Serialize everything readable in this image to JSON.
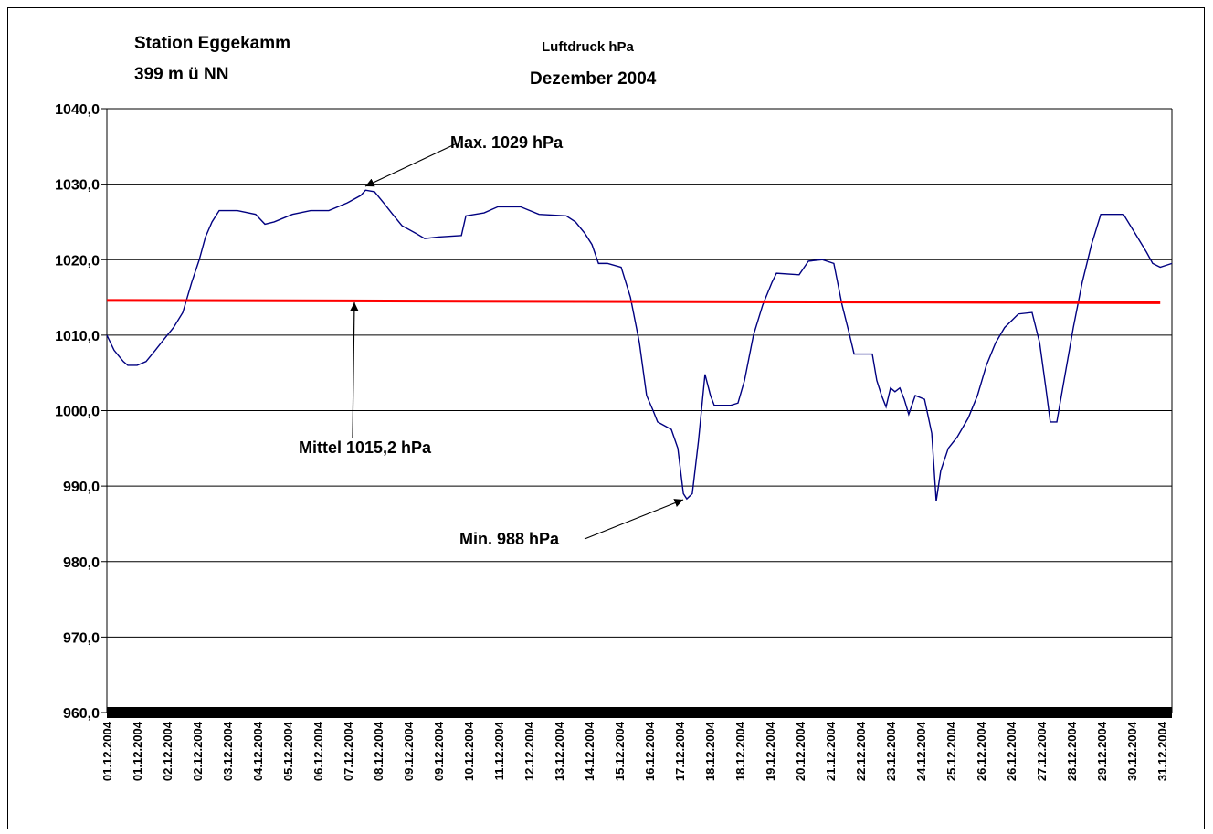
{
  "chart_data": {
    "type": "line",
    "title": "Luftdruck hPa",
    "subtitle": "Dezember 2004",
    "station": "Station Eggekamm",
    "elevation": "399 m ü NN",
    "categories": [
      "01.12.2004",
      "01.12.2004",
      "02.12.2004",
      "02.12.2004",
      "03.12.2004",
      "04.12.2004",
      "05.12.2004",
      "06.12.2004",
      "07.12.2004",
      "08.12.2004",
      "09.12.2004",
      "09.12.2004",
      "10.12.2004",
      "11.12.2004",
      "12.12.2004",
      "13.12.2004",
      "14.12.2004",
      "15.12.2004",
      "16.12.2004",
      "17.12.2004",
      "18.12.2004",
      "18.12.2004",
      "19.12.2004",
      "20.12.2004",
      "21.12.2004",
      "22.12.2004",
      "23.12.2004",
      "24.12.2004",
      "25.12.2004",
      "26.12.2004",
      "26.12.2004",
      "27.12.2004",
      "28.12.2004",
      "29.12.2004",
      "30.12.2004",
      "31.12.2004"
    ],
    "xlim": [
      1,
      32
    ],
    "ylim": [
      960,
      1040
    ],
    "yticks": [
      {
        "value": 960,
        "label": "960,0"
      },
      {
        "value": 970,
        "label": "970,0"
      },
      {
        "value": 980,
        "label": "980,0"
      },
      {
        "value": 990,
        "label": "990,0"
      },
      {
        "value": 1000,
        "label": "1000,0"
      },
      {
        "value": 1010,
        "label": "1010,0"
      },
      {
        "value": 1020,
        "label": "1020,0"
      },
      {
        "value": 1030,
        "label": "1030,0"
      },
      {
        "value": 1040,
        "label": "1040,0"
      }
    ],
    "grid": true,
    "series": [
      {
        "color": "#000080",
        "x": [
          1.0,
          1.21,
          1.48,
          1.61,
          1.88,
          2.14,
          2.41,
          2.67,
          2.94,
          3.21,
          3.34,
          3.47,
          3.69,
          3.87,
          4.06,
          4.27,
          4.8,
          5.33,
          5.6,
          5.87,
          6.4,
          6.93,
          7.46,
          7.99,
          8.39,
          8.53,
          8.79,
          9.06,
          9.32,
          9.59,
          9.99,
          10.25,
          10.65,
          11.32,
          11.45,
          11.98,
          12.38,
          13.04,
          13.58,
          14.37,
          14.64,
          14.91,
          15.12,
          15.31,
          15.57,
          15.97,
          16.24,
          16.5,
          16.71,
          16.9,
          17.03,
          17.43,
          17.62,
          17.78,
          17.88,
          18.04,
          18.22,
          18.41,
          18.57,
          18.68,
          19.16,
          19.37,
          19.56,
          19.82,
          20.09,
          20.36,
          20.49,
          21.15,
          21.42,
          21.82,
          22.16,
          22.4,
          22.62,
          22.75,
          23.28,
          23.41,
          23.55,
          23.68,
          23.81,
          23.94,
          24.08,
          24.21,
          24.34,
          24.53,
          24.8,
          25.01,
          25.14,
          25.27,
          25.49,
          25.75,
          26.07,
          26.34,
          26.6,
          26.87,
          27.13,
          27.53,
          27.93,
          28.15,
          28.33,
          28.46,
          28.65,
          28.86,
          29.13,
          29.39,
          29.66,
          29.93,
          30.59,
          30.86,
          31.26,
          31.44,
          31.66,
          32.0
        ],
        "values": [
          1010,
          1008,
          1006.5,
          1006,
          1006,
          1006.5,
          1008,
          1009.5,
          1011,
          1013,
          1015,
          1017,
          1020,
          1023,
          1025,
          1026.5,
          1026.5,
          1026,
          1024.7,
          1025,
          1026,
          1026.5,
          1026.5,
          1027.5,
          1028.5,
          1029.2,
          1029,
          1027.5,
          1026,
          1024.5,
          1023.5,
          1022.8,
          1023,
          1023.2,
          1025.8,
          1026.2,
          1027,
          1027,
          1026,
          1025.8,
          1025,
          1023.5,
          1022,
          1019.5,
          1019.5,
          1019,
          1015,
          1009,
          1002,
          1000,
          998.5,
          997.5,
          995,
          989,
          988.3,
          989,
          996,
          1004.8,
          1002,
          1000.7,
          1000.7,
          1001,
          1004,
          1010,
          1014,
          1017,
          1018.2,
          1018,
          1019.8,
          1020,
          1019.5,
          1014,
          1010,
          1007.5,
          1007.5,
          1004,
          1002,
          1000.5,
          1003,
          1002.5,
          1003,
          1001.5,
          999.5,
          1002,
          1001.5,
          997,
          988,
          992,
          995,
          996.5,
          999,
          1002,
          1006,
          1009,
          1011,
          1012.8,
          1013,
          1009,
          1003,
          998.5,
          998.5,
          1004,
          1011,
          1017,
          1022,
          1026,
          1026,
          1024,
          1021,
          1019.5,
          1019,
          1019.5
        ]
      },
      {
        "color": "#ff0000",
        "x": [
          1.0,
          31.66
        ],
        "values": [
          1014.6,
          1014.3
        ]
      }
    ],
    "annotations": [
      "Max. 1029 hPa",
      "Mittel 1015,2 hPa",
      "Min. 988 hPa"
    ]
  }
}
